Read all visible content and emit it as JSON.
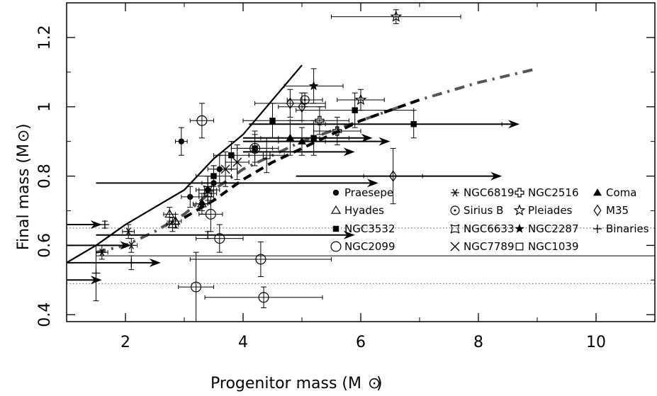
{
  "chart_data": {
    "type": "scatter",
    "title": "",
    "xlabel": "Progenitor mass (M",
    "ylabel": "Final mass (M",
    "xlim": [
      1,
      11
    ],
    "ylim": [
      0.38,
      1.3
    ],
    "xticks": [
      2,
      4,
      6,
      8,
      10
    ],
    "yticks": [
      0.4,
      0.6,
      0.8,
      1,
      1.2
    ],
    "xtick_labels": [
      "2",
      "4",
      "6",
      "8",
      "10"
    ],
    "ytick_labels": [
      "0.4",
      "0.6",
      "0.8",
      "1",
      "1.2"
    ],
    "grid": false,
    "legend_position": "center-right",
    "legend": [
      {
        "label": "Praesepe",
        "marker": "filled-circle"
      },
      {
        "label": "NGC6819",
        "marker": "asterisk"
      },
      {
        "label": "NGC2516",
        "marker": "open-cross"
      },
      {
        "label": "Coma",
        "marker": "filled-triangle"
      },
      {
        "label": "Hyades",
        "marker": "open-triangle"
      },
      {
        "label": "Sirius B",
        "marker": "dotted-circle"
      },
      {
        "label": "Pleiades",
        "marker": "open-star"
      },
      {
        "label": "M35",
        "marker": "open-diamond"
      },
      {
        "label": "NGC3532",
        "marker": "filled-square"
      },
      {
        "label": "NGC6633",
        "marker": "concave-square"
      },
      {
        "label": "NGC2287",
        "marker": "filled-star"
      },
      {
        "label": "Binaries",
        "marker": "plus"
      },
      {
        "label": "NGC2099",
        "marker": "open-circle"
      },
      {
        "label": "NGC7789",
        "marker": "x-cross"
      },
      {
        "label": "NGC1039",
        "marker": "open-square"
      }
    ],
    "reference_lines": [
      {
        "style": "dotted",
        "y": 0.65
      },
      {
        "style": "dotted",
        "y": 0.49
      },
      {
        "style": "solid",
        "y": 0.57
      }
    ],
    "curves": [
      {
        "style": "solid",
        "x": [
          1,
          1.5,
          2,
          2.5,
          3,
          3.5,
          4,
          4.5,
          5
        ],
        "y": [
          0.55,
          0.6,
          0.66,
          0.71,
          0.76,
          0.85,
          0.92,
          1.02,
          1.12
        ]
      },
      {
        "style": "dash-dot-grey",
        "x": [
          1.5,
          2,
          2.5,
          3,
          3.5,
          4,
          5,
          6,
          7,
          8,
          9
        ],
        "y": [
          0.58,
          0.6,
          0.64,
          0.69,
          0.76,
          0.82,
          0.9,
          0.96,
          1.02,
          1.07,
          1.11
        ]
      },
      {
        "style": "dashed-thick",
        "x": [
          3,
          3.5,
          4,
          4.5,
          5,
          5.5,
          6,
          6.5,
          7
        ],
        "y": [
          0.68,
          0.73,
          0.79,
          0.84,
          0.88,
          0.92,
          0.96,
          0.99,
          1.02
        ]
      }
    ],
    "arrows": [
      {
        "x": 1.5,
        "y": 0.78,
        "x_end": 6.3
      },
      {
        "x": 1,
        "y": 0.66,
        "x_end": 1.6
      },
      {
        "x": 1,
        "y": 0.6,
        "x_end": 2.1
      },
      {
        "x": 1,
        "y": 0.55,
        "x_end": 2.6
      },
      {
        "x": 1,
        "y": 0.5,
        "x_end": 1.6
      },
      {
        "x": 1.5,
        "y": 0.63,
        "x_end": 5.9
      },
      {
        "x": 4.1,
        "y": 0.95,
        "x_end": 8.7
      },
      {
        "x": 4.0,
        "y": 0.91,
        "x_end": 6.2
      },
      {
        "x": 4.0,
        "y": 0.87,
        "x_end": 5.9
      },
      {
        "x": 4.0,
        "y": 0.9,
        "x_end": 6.5
      },
      {
        "x": 4.9,
        "y": 0.8,
        "x_end": 8.4
      }
    ],
    "series": [
      {
        "marker": "filled-circle",
        "points": [
          {
            "x": 2.95,
            "y": 0.9,
            "xerr": 0.1,
            "yerr": 0.04
          },
          {
            "x": 3.1,
            "y": 0.74,
            "xerr": 0.15,
            "yerr": 0.03
          },
          {
            "x": 3.3,
            "y": 0.72,
            "xerr": 0.1,
            "yerr": 0.03
          },
          {
            "x": 3.4,
            "y": 0.76,
            "xerr": 0.15,
            "yerr": 0.04
          },
          {
            "x": 3.5,
            "y": 0.78,
            "xerr": 0.2,
            "yerr": 0.05
          },
          {
            "x": 3.6,
            "y": 0.82,
            "xerr": 0.2,
            "yerr": 0.04
          }
        ]
      },
      {
        "marker": "open-triangle",
        "points": [
          {
            "x": 2.75,
            "y": 0.69,
            "xerr": 0.1,
            "yerr": 0.02
          },
          {
            "x": 2.85,
            "y": 0.67,
            "xerr": 0.1,
            "yerr": 0.02
          },
          {
            "x": 2.8,
            "y": 0.66,
            "xerr": 0.1,
            "yerr": 0.02
          },
          {
            "x": 3.3,
            "y": 0.72,
            "xerr": 0.15,
            "yerr": 0.02
          },
          {
            "x": 3.4,
            "y": 0.75,
            "xerr": 0.15,
            "yerr": 0.02
          }
        ]
      },
      {
        "marker": "filled-square",
        "points": [
          {
            "x": 3.5,
            "y": 0.8,
            "xerr": 0.3,
            "yerr": 0.03
          },
          {
            "x": 3.8,
            "y": 0.86,
            "xerr": 0.3,
            "yerr": 0.04
          },
          {
            "x": 4.2,
            "y": 0.88,
            "xerr": 0.4,
            "yerr": 0.04
          },
          {
            "x": 4.5,
            "y": 0.96,
            "xerr": 0.5,
            "yerr": 0.05
          },
          {
            "x": 5.2,
            "y": 0.91,
            "xerr": 0.6,
            "yerr": 0.05
          },
          {
            "x": 5.9,
            "y": 0.99,
            "xerr": 1.0,
            "yerr": 0.05
          },
          {
            "x": 6.9,
            "y": 0.95,
            "xerr": 1.5,
            "yerr": 0.04
          }
        ]
      },
      {
        "marker": "open-circle",
        "points": [
          {
            "x": 3.3,
            "y": 0.96,
            "xerr": 0.2,
            "yerr": 0.05
          },
          {
            "x": 3.45,
            "y": 0.69,
            "xerr": 0.2,
            "yerr": 0.05
          },
          {
            "x": 3.6,
            "y": 0.62,
            "xerr": 0.4,
            "yerr": 0.04
          },
          {
            "x": 3.2,
            "y": 0.48,
            "xerr": 0.3,
            "yerr": 0.1
          },
          {
            "x": 4.3,
            "y": 0.56,
            "xerr": 1.2,
            "yerr": 0.05
          },
          {
            "x": 4.35,
            "y": 0.45,
            "xerr": 1.0,
            "yerr": 0.03
          },
          {
            "x": 4.2,
            "y": 0.88,
            "xerr": 0.3,
            "yerr": 0.05
          }
        ]
      },
      {
        "marker": "asterisk",
        "points": [
          {
            "x": 1.6,
            "y": 0.58,
            "xerr": 0.1,
            "yerr": 0.02
          },
          {
            "x": 2.05,
            "y": 0.64,
            "xerr": 0.1,
            "yerr": 0.02
          },
          {
            "x": 2.1,
            "y": 0.6,
            "xerr": 0.1,
            "yerr": 0.02
          }
        ]
      },
      {
        "marker": "x-cross",
        "points": [
          {
            "x": 3.7,
            "y": 0.82,
            "xerr": 0.2,
            "yerr": 0.05
          },
          {
            "x": 3.9,
            "y": 0.84,
            "xerr": 0.2,
            "yerr": 0.05
          }
        ]
      },
      {
        "marker": "open-cross",
        "points": [
          {
            "x": 5.3,
            "y": 0.96,
            "xerr": 0.5,
            "yerr": 0.04
          },
          {
            "x": 5.6,
            "y": 0.93,
            "xerr": 0.4,
            "yerr": 0.04
          }
        ]
      },
      {
        "marker": "open-star",
        "points": [
          {
            "x": 6.6,
            "y": 1.26,
            "xerr": 1.1,
            "yerr": 0.02
          },
          {
            "x": 6.0,
            "y": 1.02,
            "xerr": 0.4,
            "yerr": 0.03
          }
        ]
      },
      {
        "marker": "filled-star",
        "points": [
          {
            "x": 5.2,
            "y": 1.06,
            "xerr": 0.5,
            "yerr": 0.05
          }
        ]
      },
      {
        "marker": "filled-triangle",
        "points": [
          {
            "x": 4.8,
            "y": 0.91,
            "xerr": 0.5,
            "yerr": 0.05
          },
          {
            "x": 5.0,
            "y": 0.9,
            "xerr": 0.4,
            "yerr": 0.04
          }
        ]
      },
      {
        "marker": "open-diamond",
        "points": [
          {
            "x": 4.8,
            "y": 1.01,
            "xerr": 0.6,
            "yerr": 0.04
          },
          {
            "x": 5.0,
            "y": 1.0,
            "xerr": 0.4,
            "yerr": 0.04
          },
          {
            "x": 6.55,
            "y": 0.8,
            "xerr": 0.5,
            "yerr": 0.08
          }
        ]
      },
      {
        "marker": "open-square",
        "points": [
          {
            "x": 4.4,
            "y": 0.86,
            "xerr": 0.3,
            "yerr": 0.05
          }
        ]
      },
      {
        "marker": "concave-square",
        "points": [
          {
            "x": 3.4,
            "y": 0.76,
            "xerr": 0.2,
            "yerr": 0.04
          }
        ]
      },
      {
        "marker": "dotted-circle",
        "points": [
          {
            "x": 5.05,
            "y": 1.02,
            "xerr": 0.3,
            "yerr": 0.02
          }
        ]
      },
      {
        "marker": "plus",
        "points": [
          {
            "x": 1.5,
            "y": 0.52,
            "xerr": 0.0,
            "yerr": 0.08
          },
          {
            "x": 1.65,
            "y": 0.66,
            "xerr": 0.0,
            "yerr": 0.01
          },
          {
            "x": 2.1,
            "y": 0.55,
            "xerr": 0.0,
            "yerr": 0.02
          },
          {
            "x": 3.4,
            "y": 0.63,
            "xerr": 0.0,
            "yerr": 0.01
          }
        ]
      }
    ]
  }
}
